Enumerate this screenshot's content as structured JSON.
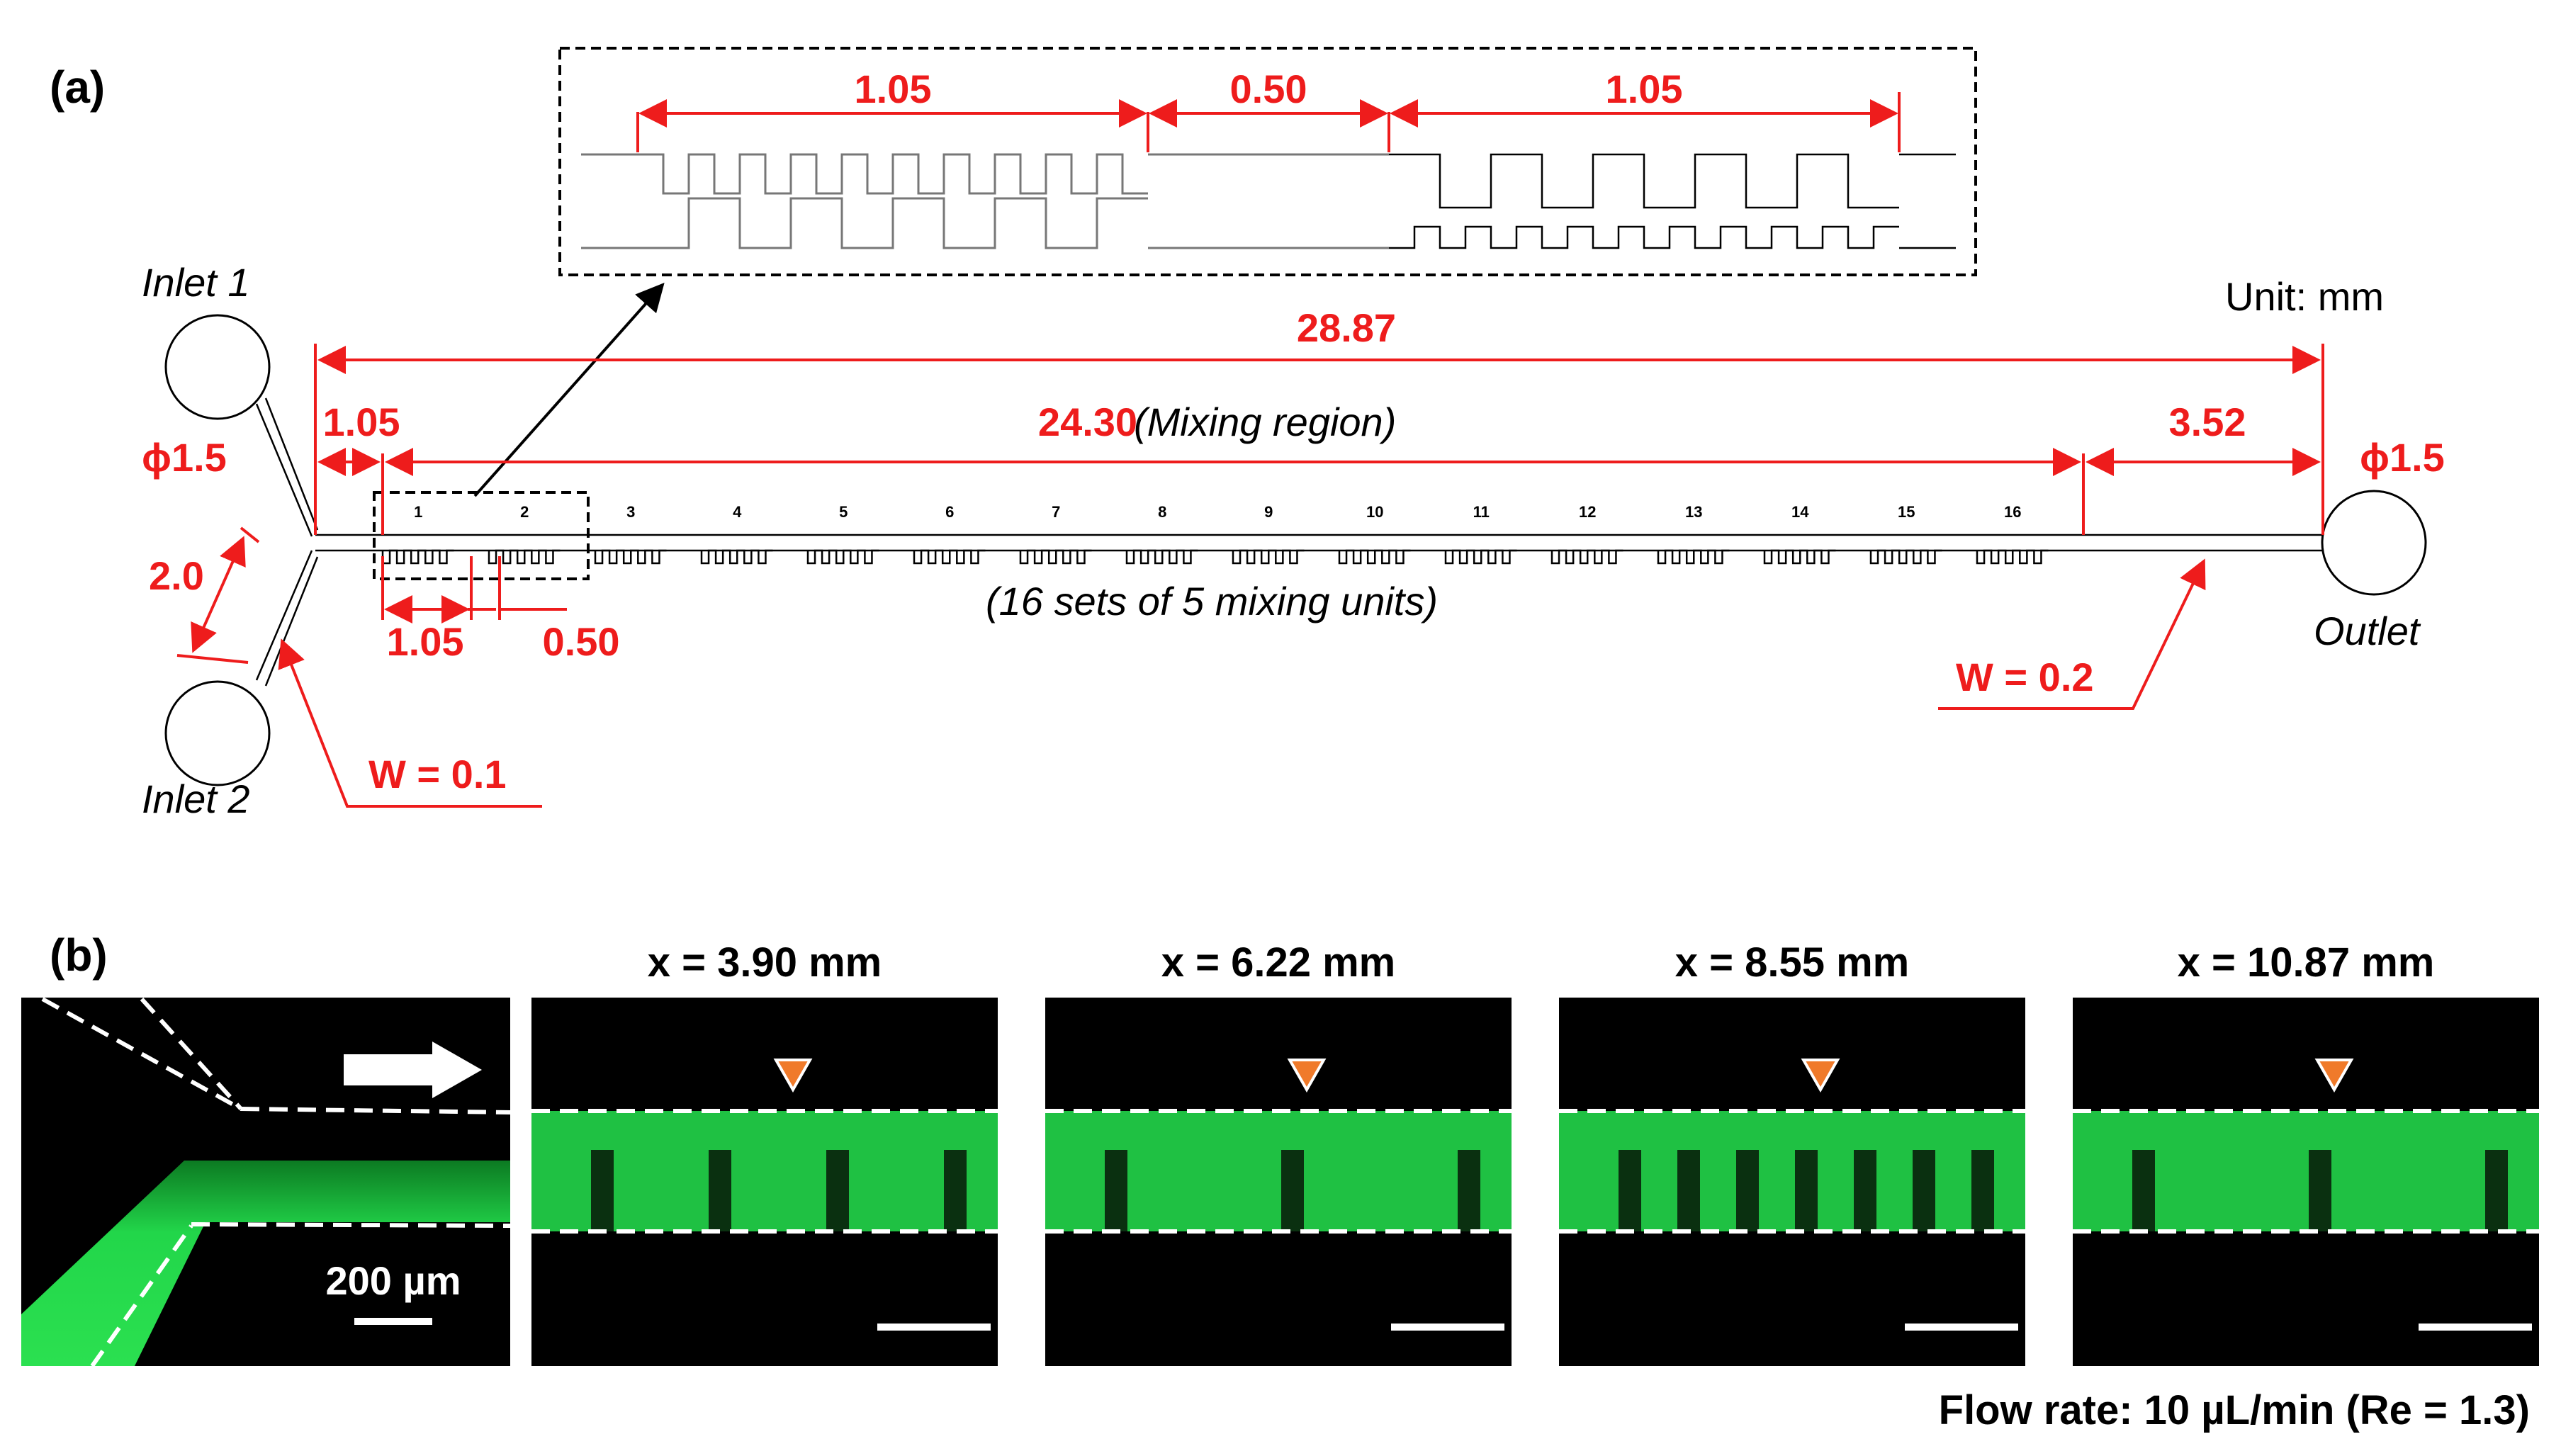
{
  "panel_a": {
    "label": "(a)",
    "unit": "Unit: mm",
    "total_length": "28.87",
    "inlet_segment": "1.05",
    "mixing_length": "24.30",
    "mixing_label": "(Mixing region)",
    "outlet_segment": "3.52",
    "inlet_diameter": "ϕ1.5",
    "outlet_diameter": "ϕ1.5",
    "inlet_spacing": "2.0",
    "inlet_width": "W = 0.1",
    "outlet_width": "W = 0.2",
    "unit_length": "1.05",
    "gap_length": "0.50",
    "sets_label": "(16 sets of 5 mixing units)",
    "inlet1": "Inlet 1",
    "inlet2": "Inlet 2",
    "outlet": "Outlet",
    "zoom_dims": [
      "1.05",
      "0.50",
      "1.05"
    ],
    "set_numbers": [
      "1",
      "2",
      "3",
      "4",
      "5",
      "6",
      "7",
      "8",
      "9",
      "10",
      "11",
      "12",
      "13",
      "14",
      "15",
      "16"
    ]
  },
  "panel_b": {
    "label": "(b)",
    "scale_bar": "200 µm",
    "positions": [
      "x = 3.90 mm",
      "x = 6.22 mm",
      "x = 8.55 mm",
      "x = 10.87 mm"
    ],
    "flow_note": "Flow rate: 10 µL/min (Re = 1.3)",
    "colors": {
      "fluorescence": "#22d64a",
      "marker": "#f07a2a",
      "dims": "#ee1c1c"
    }
  }
}
